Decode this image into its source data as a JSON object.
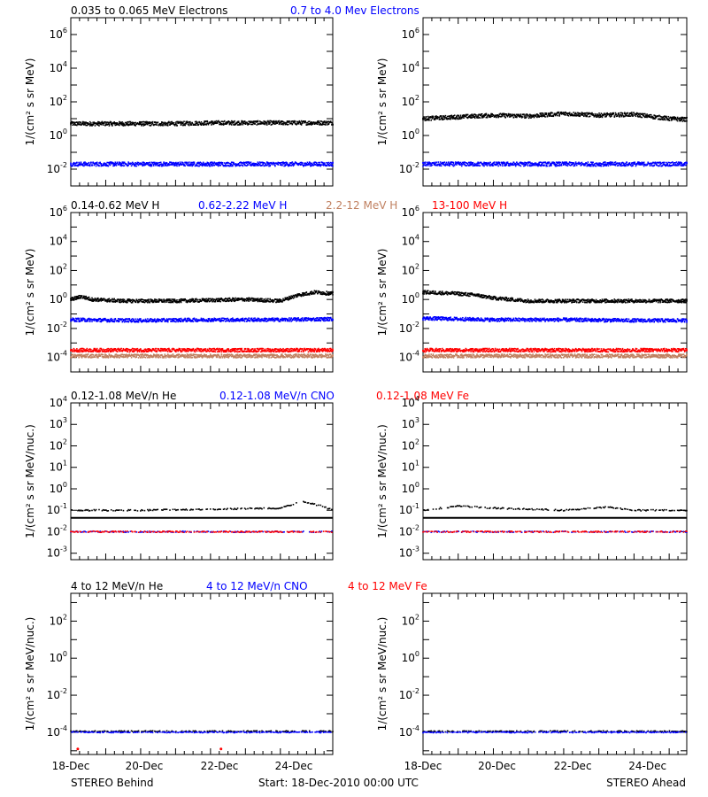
{
  "colors": {
    "black": "#000000",
    "blue": "#0000ff",
    "tan": "#c08060",
    "red": "#ff0000"
  },
  "footer": {
    "left": "STEREO Behind",
    "center": "Start: 18-Dec-2010 00:00 UTC",
    "right": "STEREO Ahead"
  },
  "x_ticks": [
    "18-Dec",
    "20-Dec",
    "22-Dec",
    "24-Dec"
  ],
  "rows": [
    {
      "legend": [
        {
          "text": "0.035 to 0.065 MeV Electrons",
          "color": "black"
        },
        {
          "text": "0.7 to 4.0 Mev Electrons",
          "color": "blue"
        }
      ]
    },
    {
      "legend": [
        {
          "text": "0.14-0.62 MeV H",
          "color": "black"
        },
        {
          "text": "0.62-2.22 MeV H",
          "color": "blue"
        },
        {
          "text": "2.2-12 MeV H",
          "color": "tan"
        },
        {
          "text": "13-100 MeV H",
          "color": "red"
        }
      ]
    },
    {
      "legend": [
        {
          "text": "0.12-1.08 MeV/n He",
          "color": "black"
        },
        {
          "text": "0.12-1.08 MeV/n CNO",
          "color": "blue"
        },
        {
          "text": "0.12-1.08 MeV Fe",
          "color": "red"
        }
      ]
    },
    {
      "legend": [
        {
          "text": "4 to 12 MeV/n He",
          "color": "black"
        },
        {
          "text": "4 to 12 MeV/n CNO",
          "color": "blue"
        },
        {
          "text": "4 to 12 MeV Fe",
          "color": "red"
        }
      ]
    }
  ],
  "chart_data": [
    {
      "type": "scatter",
      "row": 0,
      "side": "behind",
      "ylabel": "1/(cm² s sr MeV)",
      "yscale": "log",
      "ylim": [
        -3,
        7
      ],
      "yticks": [
        {
          "e": -2,
          "label": "10-2"
        },
        {
          "e": 0,
          "label": "100"
        },
        {
          "e": 2,
          "label": "102"
        },
        {
          "e": 4,
          "label": "104"
        },
        {
          "e": 6,
          "label": "106"
        }
      ],
      "xlim": [
        0,
        7.5
      ],
      "series": [
        {
          "name": "0.035 to 0.065 MeV Electrons",
          "color": "black",
          "points": [
            [
              0,
              0.7
            ],
            [
              1,
              0.7
            ],
            [
              2,
              0.7
            ],
            [
              3,
              0.7
            ],
            [
              4,
              0.75
            ],
            [
              5,
              0.75
            ],
            [
              6,
              0.75
            ],
            [
              7,
              0.75
            ],
            [
              7.5,
              0.75
            ]
          ]
        },
        {
          "name": "0.7 to 4.0 Mev Electrons",
          "color": "blue",
          "points": [
            [
              0,
              -1.7
            ],
            [
              1,
              -1.7
            ],
            [
              2,
              -1.7
            ],
            [
              3,
              -1.7
            ],
            [
              4,
              -1.7
            ],
            [
              5,
              -1.7
            ],
            [
              6,
              -1.7
            ],
            [
              7,
              -1.7
            ],
            [
              7.5,
              -1.7
            ]
          ]
        }
      ]
    },
    {
      "type": "scatter",
      "row": 0,
      "side": "ahead",
      "ylabel": "1/(cm² s sr MeV)",
      "yscale": "log",
      "ylim": [
        -3,
        7
      ],
      "yticks": [
        {
          "e": -2,
          "label": "10-2"
        },
        {
          "e": 0,
          "label": "100"
        },
        {
          "e": 2,
          "label": "102"
        },
        {
          "e": 4,
          "label": "104"
        },
        {
          "e": 6,
          "label": "106"
        }
      ],
      "xlim": [
        0,
        7.5
      ],
      "series": [
        {
          "name": "0.035 to 0.065 MeV Electrons",
          "color": "black",
          "points": [
            [
              0,
              1.0
            ],
            [
              1,
              1.1
            ],
            [
              2,
              1.2
            ],
            [
              3,
              1.15
            ],
            [
              4,
              1.3
            ],
            [
              5,
              1.2
            ],
            [
              6,
              1.25
            ],
            [
              7,
              1.0
            ],
            [
              7.5,
              0.95
            ]
          ]
        },
        {
          "name": "0.7 to 4.0 Mev Electrons",
          "color": "blue",
          "points": [
            [
              0,
              -1.7
            ],
            [
              1,
              -1.7
            ],
            [
              2,
              -1.7
            ],
            [
              3,
              -1.7
            ],
            [
              4,
              -1.7
            ],
            [
              5,
              -1.7
            ],
            [
              6,
              -1.7
            ],
            [
              7,
              -1.7
            ],
            [
              7.5,
              -1.7
            ]
          ]
        }
      ]
    },
    {
      "type": "scatter",
      "row": 1,
      "side": "behind",
      "ylabel": "1/(cm² s sr MeV)",
      "yscale": "log",
      "ylim": [
        -5,
        6
      ],
      "yticks": [
        {
          "e": -4,
          "label": "10-4"
        },
        {
          "e": -2,
          "label": "10-2"
        },
        {
          "e": 0,
          "label": "100"
        },
        {
          "e": 2,
          "label": "102"
        },
        {
          "e": 4,
          "label": "104"
        },
        {
          "e": 6,
          "label": "106"
        }
      ],
      "xlim": [
        0,
        7.5
      ],
      "series": [
        {
          "name": "0.14-0.62 MeV H",
          "color": "black",
          "points": [
            [
              0,
              0.0
            ],
            [
              0.3,
              0.2
            ],
            [
              0.6,
              0.0
            ],
            [
              1.5,
              -0.1
            ],
            [
              3,
              -0.1
            ],
            [
              5,
              0.0
            ],
            [
              6,
              -0.1
            ],
            [
              6.5,
              0.3
            ],
            [
              7,
              0.5
            ],
            [
              7.5,
              0.4
            ]
          ]
        },
        {
          "name": "0.62-2.22 MeV H",
          "color": "blue",
          "points": [
            [
              0,
              -1.4
            ],
            [
              2,
              -1.45
            ],
            [
              4,
              -1.4
            ],
            [
              6,
              -1.4
            ],
            [
              7.5,
              -1.35
            ]
          ]
        },
        {
          "name": "2.2-12 MeV H",
          "color": "tan",
          "points": [
            [
              0,
              -3.9
            ],
            [
              2,
              -3.9
            ],
            [
              4,
              -3.9
            ],
            [
              6,
              -3.9
            ],
            [
              7.5,
              -3.9
            ]
          ]
        },
        {
          "name": "13-100 MeV H",
          "color": "red",
          "points": [
            [
              0,
              -3.5
            ],
            [
              2,
              -3.5
            ],
            [
              4,
              -3.5
            ],
            [
              6,
              -3.5
            ],
            [
              7.5,
              -3.5
            ]
          ]
        }
      ]
    },
    {
      "type": "scatter",
      "row": 1,
      "side": "ahead",
      "ylabel": "1/(cm² s sr MeV)",
      "yscale": "log",
      "ylim": [
        -5,
        6
      ],
      "yticks": [
        {
          "e": -4,
          "label": "10-4"
        },
        {
          "e": -2,
          "label": "10-2"
        },
        {
          "e": 0,
          "label": "100"
        },
        {
          "e": 2,
          "label": "102"
        },
        {
          "e": 4,
          "label": "104"
        },
        {
          "e": 6,
          "label": "106"
        }
      ],
      "xlim": [
        0,
        7.5
      ],
      "series": [
        {
          "name": "0.14-0.62 MeV H",
          "color": "black",
          "points": [
            [
              0,
              0.5
            ],
            [
              1,
              0.4
            ],
            [
              1.5,
              0.3
            ],
            [
              2,
              0.1
            ],
            [
              3,
              -0.1
            ],
            [
              5,
              -0.1
            ],
            [
              7.5,
              -0.1
            ]
          ]
        },
        {
          "name": "0.62-2.22 MeV H",
          "color": "blue",
          "points": [
            [
              0,
              -1.3
            ],
            [
              2,
              -1.4
            ],
            [
              4,
              -1.4
            ],
            [
              6,
              -1.45
            ],
            [
              7.5,
              -1.45
            ]
          ]
        },
        {
          "name": "2.2-12 MeV H",
          "color": "tan",
          "points": [
            [
              0,
              -3.9
            ],
            [
              2,
              -3.9
            ],
            [
              4,
              -3.9
            ],
            [
              6,
              -3.9
            ],
            [
              7.5,
              -3.9
            ]
          ]
        },
        {
          "name": "13-100 MeV H",
          "color": "red",
          "points": [
            [
              0,
              -3.5
            ],
            [
              2,
              -3.5
            ],
            [
              4,
              -3.5
            ],
            [
              6,
              -3.5
            ],
            [
              7.5,
              -3.5
            ]
          ]
        }
      ]
    },
    {
      "type": "scatter",
      "row": 2,
      "side": "behind",
      "ylabel": "1/(cm² s sr MeV/nuc.)",
      "yscale": "log",
      "ylim": [
        -3.3,
        4
      ],
      "yticks": [
        {
          "e": -3,
          "label": "10-3"
        },
        {
          "e": -2,
          "label": "10-2"
        },
        {
          "e": -1,
          "label": "10-1"
        },
        {
          "e": 0,
          "label": "100"
        },
        {
          "e": 1,
          "label": "101"
        },
        {
          "e": 2,
          "label": "102"
        },
        {
          "e": 3,
          "label": "103"
        },
        {
          "e": 4,
          "label": "104"
        }
      ],
      "xlim": [
        0,
        7.5
      ],
      "series": [
        {
          "name": "0.12-1.08 MeV/n He",
          "color": "black",
          "points": [
            [
              0,
              -1.0
            ],
            [
              2,
              -1.0
            ],
            [
              4,
              -0.95
            ],
            [
              6,
              -0.9
            ],
            [
              6.6,
              -0.6
            ],
            [
              7.2,
              -0.8
            ],
            [
              7.5,
              -1.0
            ]
          ]
        },
        {
          "name": "0.12-1.08 MeV/n CNO",
          "color": "blue",
          "points": [
            [
              0,
              -2.0
            ],
            [
              2,
              -2.0
            ],
            [
              4,
              -2.0
            ],
            [
              6,
              -2.0
            ],
            [
              7.5,
              -2.0
            ]
          ]
        },
        {
          "name": "0.12-1.08 MeV Fe",
          "color": "red",
          "points": [
            [
              0,
              -2.0
            ],
            [
              2,
              -2.0
            ],
            [
              4,
              -2.0
            ],
            [
              6,
              -2.0
            ],
            [
              7.5,
              -2.0
            ]
          ]
        }
      ]
    },
    {
      "type": "scatter",
      "row": 2,
      "side": "ahead",
      "ylabel": "1/(cm² s sr MeV/nuc.)",
      "yscale": "log",
      "ylim": [
        -3.3,
        4
      ],
      "yticks": [
        {
          "e": -3,
          "label": "10-3"
        },
        {
          "e": -2,
          "label": "10-2"
        },
        {
          "e": -1,
          "label": "10-1"
        },
        {
          "e": 0,
          "label": "100"
        },
        {
          "e": 1,
          "label": "101"
        },
        {
          "e": 2,
          "label": "102"
        },
        {
          "e": 3,
          "label": "103"
        },
        {
          "e": 4,
          "label": "104"
        }
      ],
      "xlim": [
        0,
        7.5
      ],
      "series": [
        {
          "name": "0.12-1.08 MeV/n He",
          "color": "black",
          "points": [
            [
              0,
              -1.0
            ],
            [
              1,
              -0.8
            ],
            [
              2,
              -0.9
            ],
            [
              4,
              -1.0
            ],
            [
              5.3,
              -0.85
            ],
            [
              6,
              -1.0
            ],
            [
              7.5,
              -1.0
            ]
          ]
        },
        {
          "name": "0.12-1.08 MeV/n CNO",
          "color": "blue",
          "points": [
            [
              0,
              -2.0
            ],
            [
              2,
              -2.0
            ],
            [
              4,
              -2.0
            ],
            [
              6,
              -2.0
            ],
            [
              7.5,
              -2.0
            ]
          ]
        },
        {
          "name": "0.12-1.08 MeV Fe",
          "color": "red",
          "points": [
            [
              0,
              -2.0
            ],
            [
              2,
              -2.0
            ],
            [
              4,
              -2.0
            ],
            [
              6,
              -2.0
            ],
            [
              7.5,
              -2.0
            ]
          ]
        }
      ]
    },
    {
      "type": "scatter",
      "row": 3,
      "side": "behind",
      "ylabel": "1/(cm² s sr MeV/nuc.)",
      "yscale": "log",
      "ylim": [
        -5.2,
        3.5
      ],
      "yticks": [
        {
          "e": -4,
          "label": "10-4"
        },
        {
          "e": -2,
          "label": "10-2"
        },
        {
          "e": 0,
          "label": "100"
        },
        {
          "e": 2,
          "label": "102"
        }
      ],
      "xlim": [
        0,
        7.5
      ],
      "series": [
        {
          "name": "4 to 12 MeV/n He",
          "color": "black",
          "points": [
            [
              0,
              -3.95
            ],
            [
              2,
              -3.95
            ],
            [
              4,
              -3.95
            ],
            [
              6,
              -3.95
            ],
            [
              7.5,
              -3.95
            ]
          ]
        },
        {
          "name": "4 to 12 MeV/n CNO",
          "color": "blue",
          "points": [
            [
              0,
              -4.0
            ],
            [
              2,
              -4.0
            ],
            [
              4,
              -4.0
            ],
            [
              6,
              -4.0
            ],
            [
              7.5,
              -4.0
            ]
          ]
        },
        {
          "name": "4 to 12 MeV Fe",
          "color": "red",
          "points": [
            [
              0.2,
              -4.9
            ],
            [
              4.3,
              -4.9
            ]
          ]
        }
      ]
    },
    {
      "type": "scatter",
      "row": 3,
      "side": "ahead",
      "ylabel": "1/(cm² s sr MeV/nuc.)",
      "yscale": "log",
      "ylim": [
        -5.2,
        3.5
      ],
      "yticks": [
        {
          "e": -4,
          "label": "10-4"
        },
        {
          "e": -2,
          "label": "10-2"
        },
        {
          "e": 0,
          "label": "100"
        },
        {
          "e": 2,
          "label": "102"
        }
      ],
      "xlim": [
        0,
        7.5
      ],
      "series": [
        {
          "name": "4 to 12 MeV/n He",
          "color": "black",
          "points": [
            [
              0,
              -3.95
            ],
            [
              2,
              -3.95
            ],
            [
              4,
              -3.95
            ],
            [
              6,
              -3.95
            ],
            [
              7.5,
              -3.95
            ]
          ]
        },
        {
          "name": "4 to 12 MeV/n CNO",
          "color": "blue",
          "points": [
            [
              0,
              -4.0
            ],
            [
              2,
              -4.0
            ],
            [
              4,
              -4.0
            ],
            [
              6,
              -4.0
            ],
            [
              7.5,
              -4.0
            ]
          ]
        },
        {
          "name": "4 to 12 MeV Fe",
          "color": "red",
          "points": []
        }
      ]
    }
  ]
}
